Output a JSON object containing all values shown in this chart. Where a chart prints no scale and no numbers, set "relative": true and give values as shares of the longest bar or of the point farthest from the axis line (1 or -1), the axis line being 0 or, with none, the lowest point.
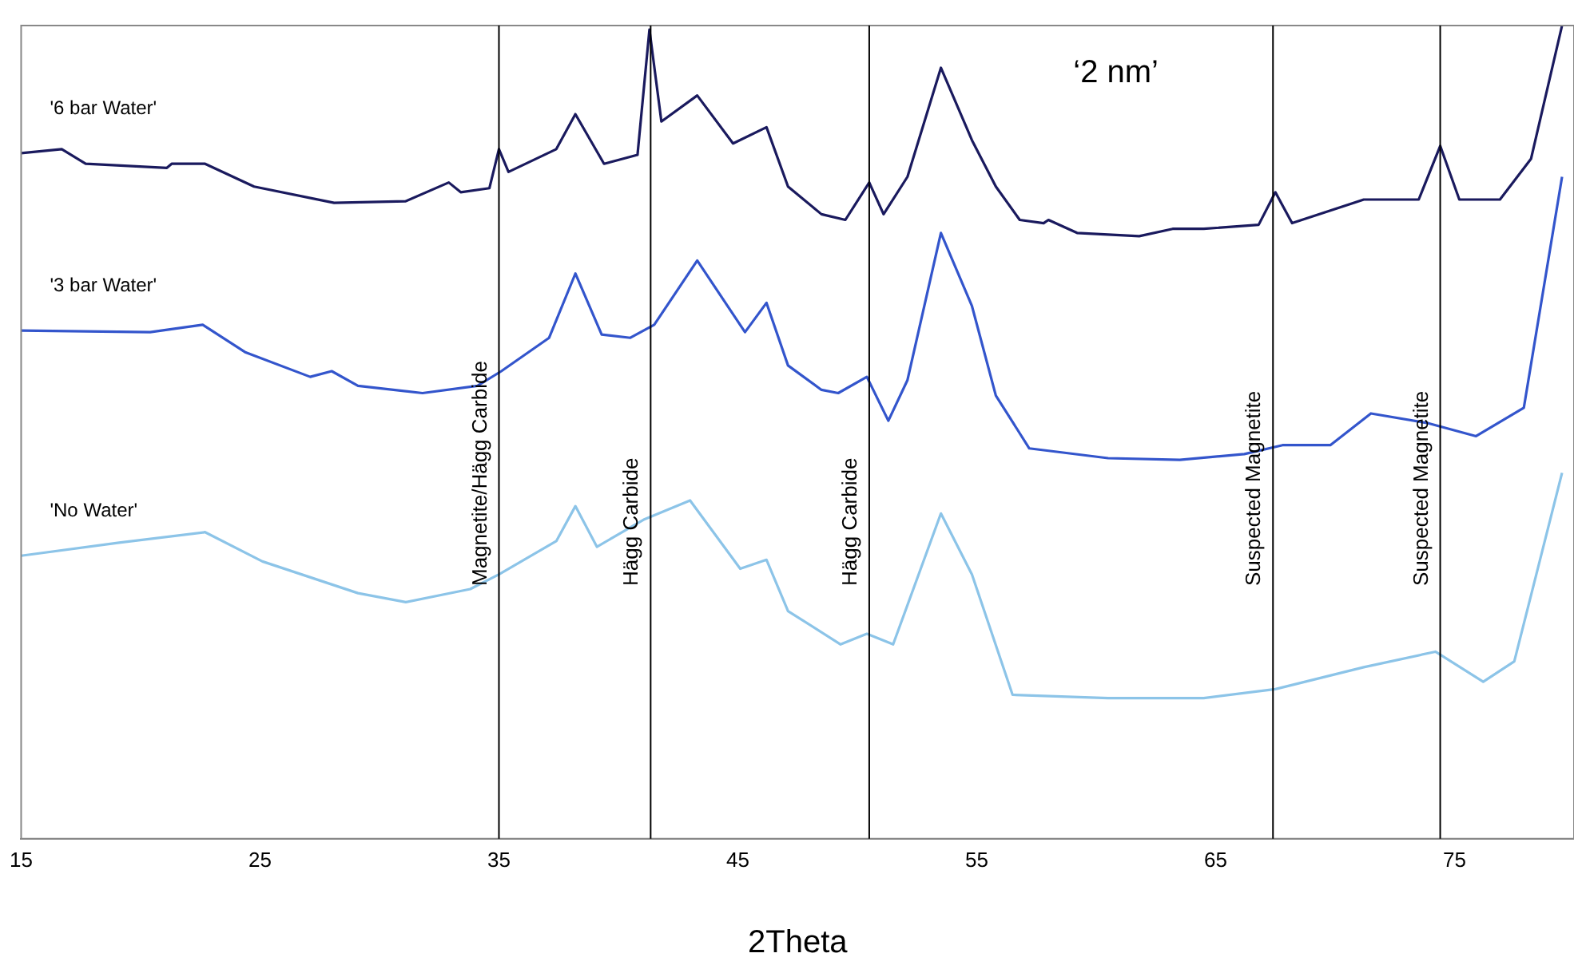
{
  "chart_data": {
    "type": "line",
    "relative": true,
    "xlabel": "2Theta",
    "xlim": [
      15,
      80
    ],
    "xticks": [
      15,
      25,
      35,
      45,
      55,
      65,
      75
    ],
    "grid": false,
    "legend": false,
    "marker": "none",
    "line_style": "solid",
    "annotations": [
      "‘2 nm’"
    ],
    "ref_lines": [
      {
        "axis": "x",
        "value": 35.0,
        "label": "Magnetite/Hägg Carbide",
        "color": "#000000"
      },
      {
        "axis": "x",
        "value": 41.35,
        "label": "Hägg Carbide",
        "color": "#000000"
      },
      {
        "axis": "x",
        "value": 50.5,
        "label": "Hägg Carbide",
        "color": "#000000"
      },
      {
        "axis": "x",
        "value": 67.4,
        "label": "Suspected Magnetite",
        "color": "#000000"
      },
      {
        "axis": "x",
        "value": 74.4,
        "label": "Suspected Magnetite",
        "color": "#000000"
      }
    ],
    "series": [
      {
        "name": "'6 bar Water'",
        "color": "#1a1a5e",
        "x": [
          15,
          16.7,
          17.7,
          21.1,
          21.3,
          22.7,
          24.75,
          28.1,
          31.1,
          32.9,
          33.4,
          34.6,
          35.0,
          35.4,
          37.4,
          38.2,
          39.4,
          40.8,
          41.3,
          41.8,
          43.3,
          44.8,
          46.2,
          47.1,
          48.5,
          49.5,
          50.5,
          51.1,
          52.1,
          53.5,
          54.8,
          55.8,
          56.8,
          57.8,
          58.0,
          59.2,
          61.8,
          63.2,
          64.5,
          66.8,
          67.5,
          68.2,
          71.2,
          73.5,
          74.4,
          75.2,
          76.9,
          78.2,
          79.5
        ],
        "values": [
          0.843,
          0.848,
          0.83,
          0.825,
          0.83,
          0.83,
          0.802,
          0.782,
          0.784,
          0.807,
          0.795,
          0.8,
          0.848,
          0.82,
          0.848,
          0.891,
          0.83,
          0.841,
          0.995,
          0.882,
          0.914,
          0.855,
          0.875,
          0.802,
          0.768,
          0.761,
          0.807,
          0.768,
          0.814,
          0.948,
          0.859,
          0.802,
          0.761,
          0.757,
          0.761,
          0.745,
          0.741,
          0.75,
          0.75,
          0.755,
          0.795,
          0.757,
          0.786,
          0.786,
          0.852,
          0.786,
          0.786,
          0.836,
          1.0
        ]
      },
      {
        "name": "'3 bar Water'",
        "color": "#3355cc",
        "x": [
          15,
          20.4,
          22.6,
          24.4,
          27.1,
          28.0,
          29.1,
          31.8,
          34.1,
          35.1,
          37.1,
          38.2,
          39.3,
          40.5,
          41.5,
          43.3,
          45.3,
          46.2,
          47.1,
          48.5,
          49.2,
          50.4,
          51.3,
          52.1,
          53.5,
          54.8,
          55.8,
          57.2,
          60.5,
          63.5,
          66.2,
          67.8,
          69.8,
          71.5,
          73.9,
          75.9,
          77.9,
          79.5
        ],
        "values": [
          0.625,
          0.623,
          0.632,
          0.598,
          0.568,
          0.575,
          0.557,
          0.548,
          0.557,
          0.575,
          0.616,
          0.695,
          0.62,
          0.616,
          0.632,
          0.711,
          0.623,
          0.659,
          0.582,
          0.552,
          0.548,
          0.568,
          0.514,
          0.564,
          0.745,
          0.655,
          0.545,
          0.48,
          0.468,
          0.466,
          0.473,
          0.484,
          0.484,
          0.523,
          0.511,
          0.495,
          0.53,
          0.814
        ]
      },
      {
        "name": "'No Water'",
        "color": "#8cc4e8",
        "x": [
          15,
          19.1,
          22.7,
          25.1,
          29.1,
          31.1,
          33.8,
          35.0,
          37.4,
          38.2,
          39.1,
          41.1,
          43.0,
          45.1,
          46.2,
          47.1,
          49.3,
          50.4,
          51.5,
          53.5,
          54.8,
          56.5,
          60.5,
          64.5,
          67.5,
          71.2,
          74.2,
          76.2,
          77.5,
          79.5
        ],
        "values": [
          0.348,
          0.364,
          0.377,
          0.341,
          0.302,
          0.291,
          0.307,
          0.325,
          0.366,
          0.409,
          0.359,
          0.393,
          0.416,
          0.332,
          0.343,
          0.28,
          0.239,
          0.252,
          0.239,
          0.4,
          0.325,
          0.177,
          0.173,
          0.173,
          0.184,
          0.211,
          0.23,
          0.193,
          0.218,
          0.45
        ]
      }
    ]
  }
}
